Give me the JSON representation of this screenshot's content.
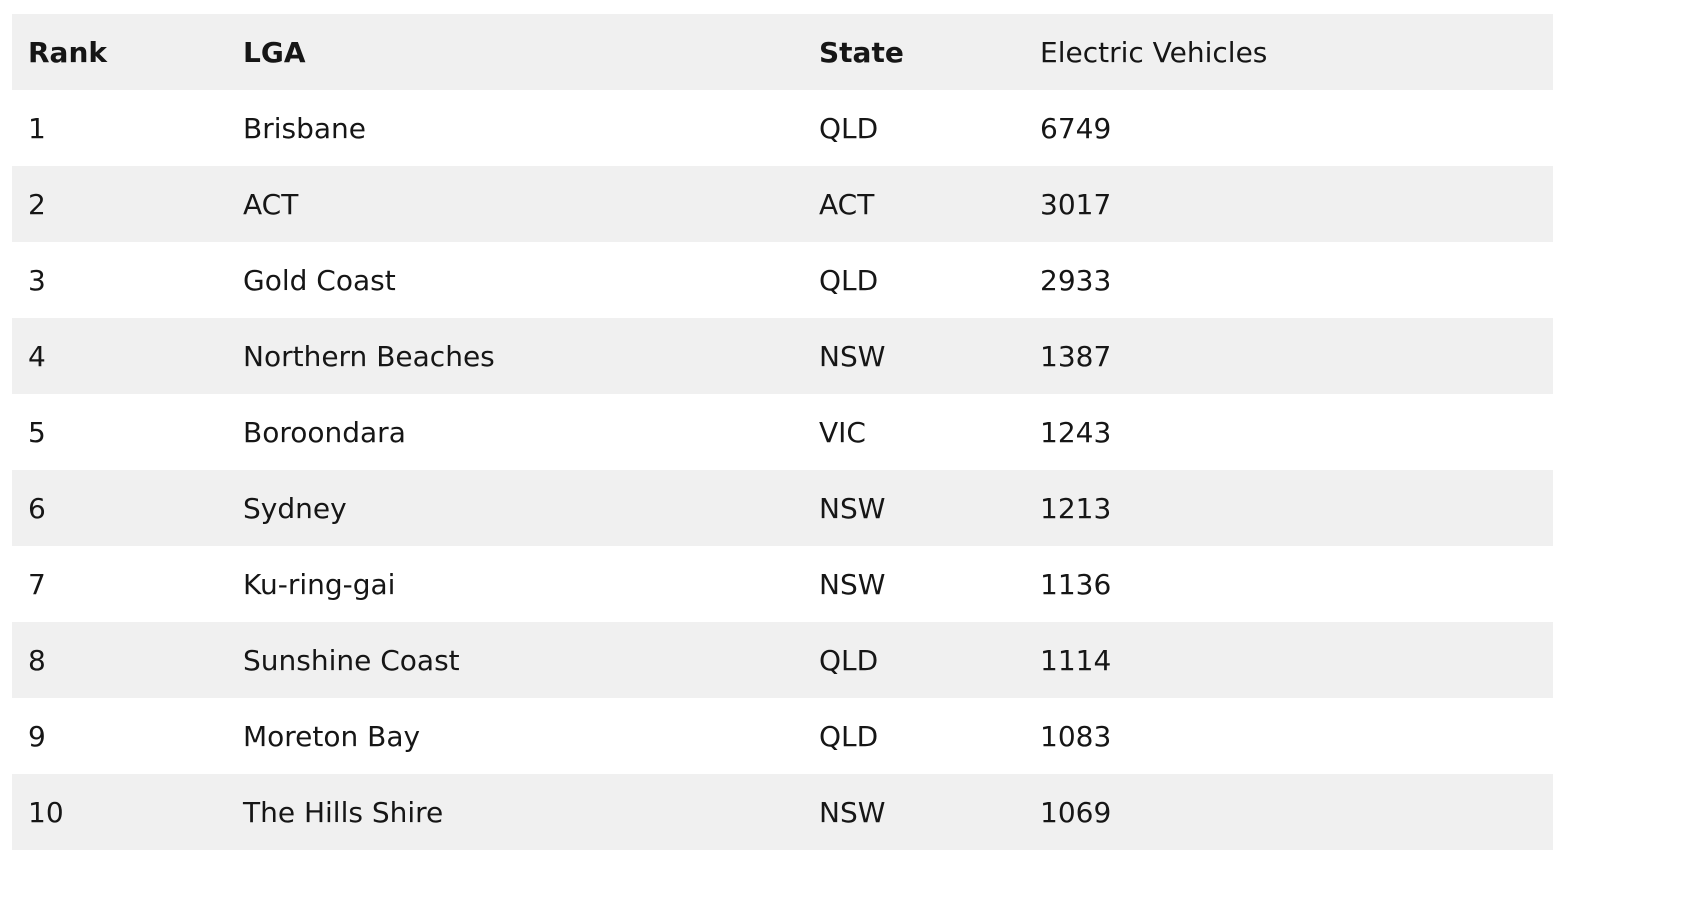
{
  "table": {
    "headers": {
      "rank": "Rank",
      "lga": "LGA",
      "state": "State",
      "ev": "Electric Vehicles"
    },
    "rows": [
      {
        "rank": "1",
        "lga": "Brisbane",
        "state": "QLD",
        "ev": "6749"
      },
      {
        "rank": "2",
        "lga": "ACT",
        "state": "ACT",
        "ev": "3017"
      },
      {
        "rank": "3",
        "lga": "Gold Coast",
        "state": "QLD",
        "ev": "2933"
      },
      {
        "rank": "4",
        "lga": "Northern Beaches",
        "state": "NSW",
        "ev": "1387"
      },
      {
        "rank": "5",
        "lga": "Boroondara",
        "state": "VIC",
        "ev": "1243"
      },
      {
        "rank": "6",
        "lga": "Sydney",
        "state": "NSW",
        "ev": "1213"
      },
      {
        "rank": "7",
        "lga": "Ku-ring-gai",
        "state": "NSW",
        "ev": "1136"
      },
      {
        "rank": "8",
        "lga": "Sunshine Coast",
        "state": "QLD",
        "ev": "1114"
      },
      {
        "rank": "9",
        "lga": "Moreton Bay",
        "state": "QLD",
        "ev": "1083"
      },
      {
        "rank": "10",
        "lga": "The Hills Shire",
        "state": "NSW",
        "ev": "1069"
      }
    ]
  },
  "colors": {
    "stripe": "#f0f0f0",
    "background": "#ffffff",
    "text": "#161616"
  }
}
